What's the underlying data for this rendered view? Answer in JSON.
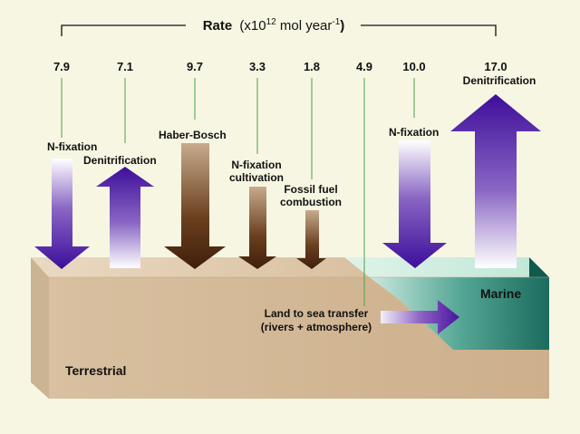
{
  "header": {
    "rate_word": "Rate",
    "unit_prefix": "(x10",
    "unit_exp": "12",
    "unit_mid": " mol year",
    "unit_exp2": "-1",
    "unit_suffix": ")"
  },
  "fluxes": [
    {
      "id": "terr-nfix",
      "rate": "7.9",
      "label1": "N-fixation",
      "label2": "",
      "direction": "down",
      "realm": "terrestrial"
    },
    {
      "id": "terr-denit",
      "rate": "7.1",
      "label1": "Denitrification",
      "label2": "",
      "direction": "up",
      "realm": "terrestrial"
    },
    {
      "id": "haber-bosch",
      "rate": "9.7",
      "label1": "Haber-Bosch",
      "label2": "",
      "direction": "down",
      "realm": "anthropogenic"
    },
    {
      "id": "nfix-cult",
      "rate": "3.3",
      "label1": "N-fixation",
      "label2": "cultivation",
      "direction": "down",
      "realm": "anthropogenic"
    },
    {
      "id": "fossil-fuel",
      "rate": "1.8",
      "label1": "Fossil fuel",
      "label2": "combustion",
      "direction": "down",
      "realm": "anthropogenic"
    },
    {
      "id": "land-to-sea",
      "rate": "4.9",
      "label1": "Land to sea transfer",
      "label2": "(rivers + atmosphere)",
      "direction": "right",
      "realm": "transfer"
    },
    {
      "id": "marine-nfix",
      "rate": "10.0",
      "label1": "N-fixation",
      "label2": "",
      "direction": "down",
      "realm": "marine"
    },
    {
      "id": "marine-denit",
      "rate": "17.0",
      "label1": "Denitrification",
      "label2": "",
      "direction": "up",
      "realm": "marine"
    }
  ],
  "regions": {
    "terrestrial": "Terrestrial",
    "marine": "Marine"
  }
}
